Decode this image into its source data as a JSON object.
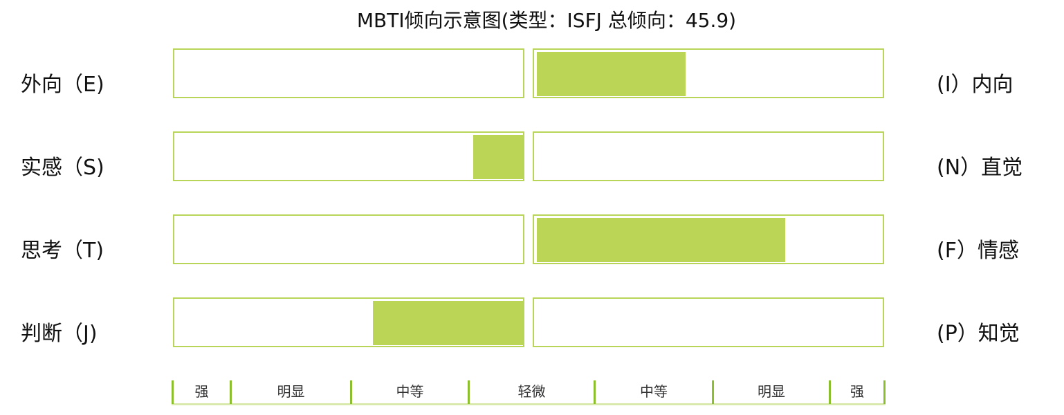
{
  "chart_data": {
    "type": "bar",
    "title": "MBTI倾向示意图(类型：ISFJ 总倾向：45.9)",
    "axis_range": [
      -3,
      3
    ],
    "rows": [
      {
        "left_label": "外向（E)",
        "right_label": "(I）内向",
        "value": 1.25
      },
      {
        "left_label": "实感（S)",
        "right_label": "(N）直觉",
        "value": -0.42
      },
      {
        "left_label": "思考（T)",
        "right_label": "(F）情感",
        "value": 2.09
      },
      {
        "left_label": "判断（J)",
        "right_label": "(P）知觉",
        "value": -1.26
      }
    ],
    "scale_labels": [
      "强",
      "明显",
      "中等",
      "轻微",
      "中等",
      "明显",
      "强"
    ],
    "colors": {
      "bar": "#bbd657",
      "border": "#b8d55a",
      "divider": "#8bbf2d"
    },
    "grid": false,
    "legend": "none"
  }
}
